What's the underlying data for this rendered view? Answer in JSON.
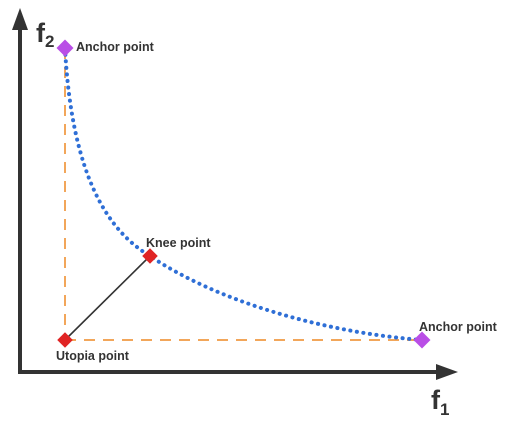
{
  "axes": {
    "x_label": "f",
    "x_sub": "1",
    "y_label": "f",
    "y_sub": "2"
  },
  "points": {
    "anchor_top": "Anchor point",
    "anchor_right": "Anchor point",
    "knee": "Knee point",
    "utopia": "Utopia point"
  },
  "colors": {
    "axis": "#333333",
    "front_curve": "#2f6fd6",
    "guide_dashed": "#f2a65a",
    "anchor_marker": "#b94ee6",
    "knee_marker": "#e02424",
    "utopia_marker": "#e02424",
    "knee_line": "#333333"
  }
}
